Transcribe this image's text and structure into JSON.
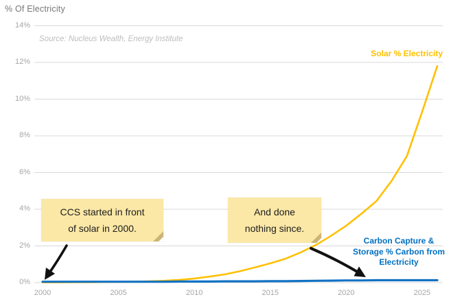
{
  "header": {
    "title": "% Of Electricity"
  },
  "source_note": "Source: Nucleus Wealth, Energy Institute",
  "labels": {
    "solar": "Solar % Electricity",
    "ccs": "Carbon Capture & Storage % Carbon from Electricity"
  },
  "notes": {
    "note1": {
      "line1": "CCS started in front",
      "line2": "of solar in 2000."
    },
    "note2": {
      "line1": "And done",
      "line2": "nothing since."
    }
  },
  "colors": {
    "solar_line": "#FFC000",
    "ccs_line": "#1272C4",
    "ccs_label": "#0070C0",
    "grid": "#D9D9D9",
    "axis_text": "#A6A6A6",
    "note_bg": "#FBE8A6",
    "arrow": "#111111"
  },
  "chart_data": {
    "type": "line",
    "title": "% Of Electricity",
    "xlabel": "",
    "ylabel": "% Of Electricity",
    "x": [
      2000,
      2001,
      2002,
      2003,
      2004,
      2005,
      2006,
      2007,
      2008,
      2009,
      2010,
      2011,
      2012,
      2013,
      2014,
      2015,
      2016,
      2017,
      2018,
      2019,
      2020,
      2021,
      2022,
      2023,
      2024,
      2025,
      2026
    ],
    "series": [
      {
        "name": "Solar % Electricity",
        "color": "#FFC000",
        "values": [
          0.01,
          0.01,
          0.02,
          0.02,
          0.03,
          0.04,
          0.05,
          0.07,
          0.1,
          0.15,
          0.22,
          0.33,
          0.45,
          0.62,
          0.83,
          1.05,
          1.3,
          1.65,
          2.05,
          2.55,
          3.1,
          3.75,
          4.45,
          5.55,
          6.9,
          9.3,
          11.8
        ]
      },
      {
        "name": "Carbon Capture & Storage % Carbon from Electricity",
        "color": "#1272C4",
        "values": [
          0.05,
          0.05,
          0.05,
          0.05,
          0.05,
          0.05,
          0.05,
          0.05,
          0.05,
          0.06,
          0.06,
          0.06,
          0.07,
          0.07,
          0.07,
          0.08,
          0.08,
          0.09,
          0.1,
          0.11,
          0.12,
          0.12,
          0.13,
          0.13,
          0.13,
          0.13,
          0.13
        ]
      }
    ],
    "xlim": [
      2000,
      2026
    ],
    "ylim": [
      0,
      14
    ],
    "y_ticks": [
      0,
      2,
      4,
      6,
      8,
      10,
      12,
      14
    ],
    "y_tick_labels": [
      "0%",
      "2%",
      "4%",
      "6%",
      "8%",
      "10%",
      "12%",
      "14%"
    ],
    "x_ticks": [
      2000,
      2005,
      2010,
      2015,
      2020,
      2025
    ],
    "grid": "horizontal",
    "legend_position": "inline-labels"
  }
}
